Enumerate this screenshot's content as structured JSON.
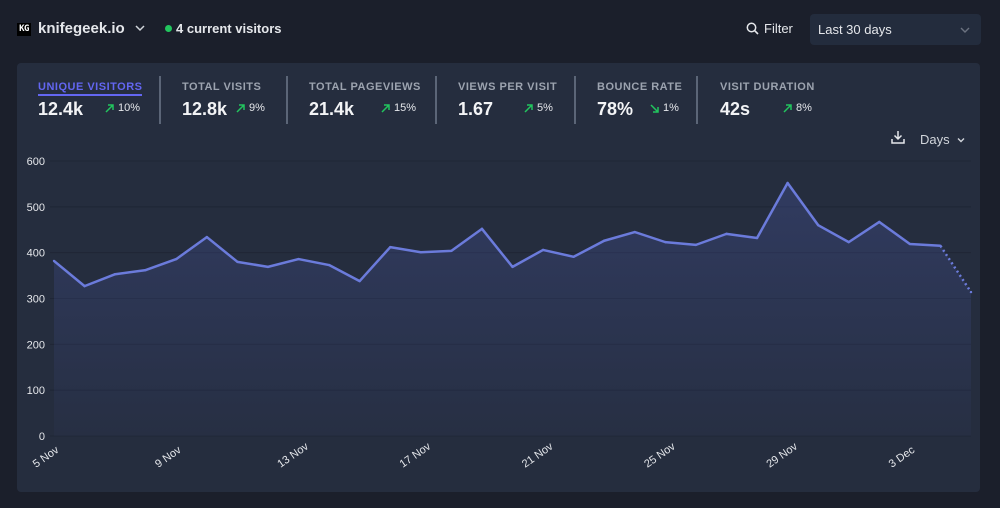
{
  "header": {
    "logo_text": "KG",
    "site_name": "knifegeek.io",
    "current_visitors": "4 current visitors",
    "filter_label": "Filter",
    "period_label": "Last 30 days"
  },
  "stats": [
    {
      "label": "UNIQUE VISITORS",
      "value": "12.4k",
      "change": "10%",
      "direction": "up",
      "active": true
    },
    {
      "label": "TOTAL VISITS",
      "value": "12.8k",
      "change": "9%",
      "direction": "up",
      "active": false
    },
    {
      "label": "TOTAL PAGEVIEWS",
      "value": "21.4k",
      "change": "15%",
      "direction": "up",
      "active": false
    },
    {
      "label": "VIEWS PER VISIT",
      "value": "1.67",
      "change": "5%",
      "direction": "up",
      "active": false
    },
    {
      "label": "BOUNCE RATE",
      "value": "78%",
      "change": "1%",
      "direction": "down",
      "active": false
    },
    {
      "label": "VISIT DURATION",
      "value": "42s",
      "change": "8%",
      "direction": "up",
      "active": false
    }
  ],
  "chart_controls": {
    "interval_label": "Days"
  },
  "colors": {
    "accent": "#6366f1",
    "line": "#6b7bdb",
    "positive": "#22c55e",
    "background": "#1b1f2b",
    "card": "#252d3e"
  },
  "chart_data": {
    "type": "line",
    "title": "",
    "xlabel": "",
    "ylabel": "",
    "ylim": [
      0,
      600
    ],
    "yticks": [
      "0",
      "100",
      "200",
      "300",
      "400",
      "500",
      "600"
    ],
    "xtick_labels": [
      "5 Nov",
      "9 Nov",
      "13 Nov",
      "17 Nov",
      "21 Nov",
      "25 Nov",
      "29 Nov",
      "3 Dec"
    ],
    "x": [
      "5 Nov",
      "6 Nov",
      "7 Nov",
      "8 Nov",
      "9 Nov",
      "10 Nov",
      "11 Nov",
      "12 Nov",
      "13 Nov",
      "14 Nov",
      "15 Nov",
      "16 Nov",
      "17 Nov",
      "18 Nov",
      "19 Nov",
      "20 Nov",
      "21 Nov",
      "22 Nov",
      "23 Nov",
      "24 Nov",
      "25 Nov",
      "26 Nov",
      "27 Nov",
      "28 Nov",
      "29 Nov",
      "30 Nov",
      "1 Dec",
      "2 Dec",
      "3 Dec",
      "4 Dec",
      "5 Dec"
    ],
    "series": [
      {
        "name": "Unique visitors",
        "values": [
          382,
          327,
          353,
          362,
          386,
          434,
          380,
          369,
          386,
          373,
          338,
          412,
          401,
          404,
          452,
          369,
          406,
          391,
          426,
          445,
          423,
          417,
          441,
          432,
          552,
          460,
          423,
          467,
          419,
          415,
          314
        ],
        "partial_last_point": true
      }
    ],
    "grid": true
  }
}
